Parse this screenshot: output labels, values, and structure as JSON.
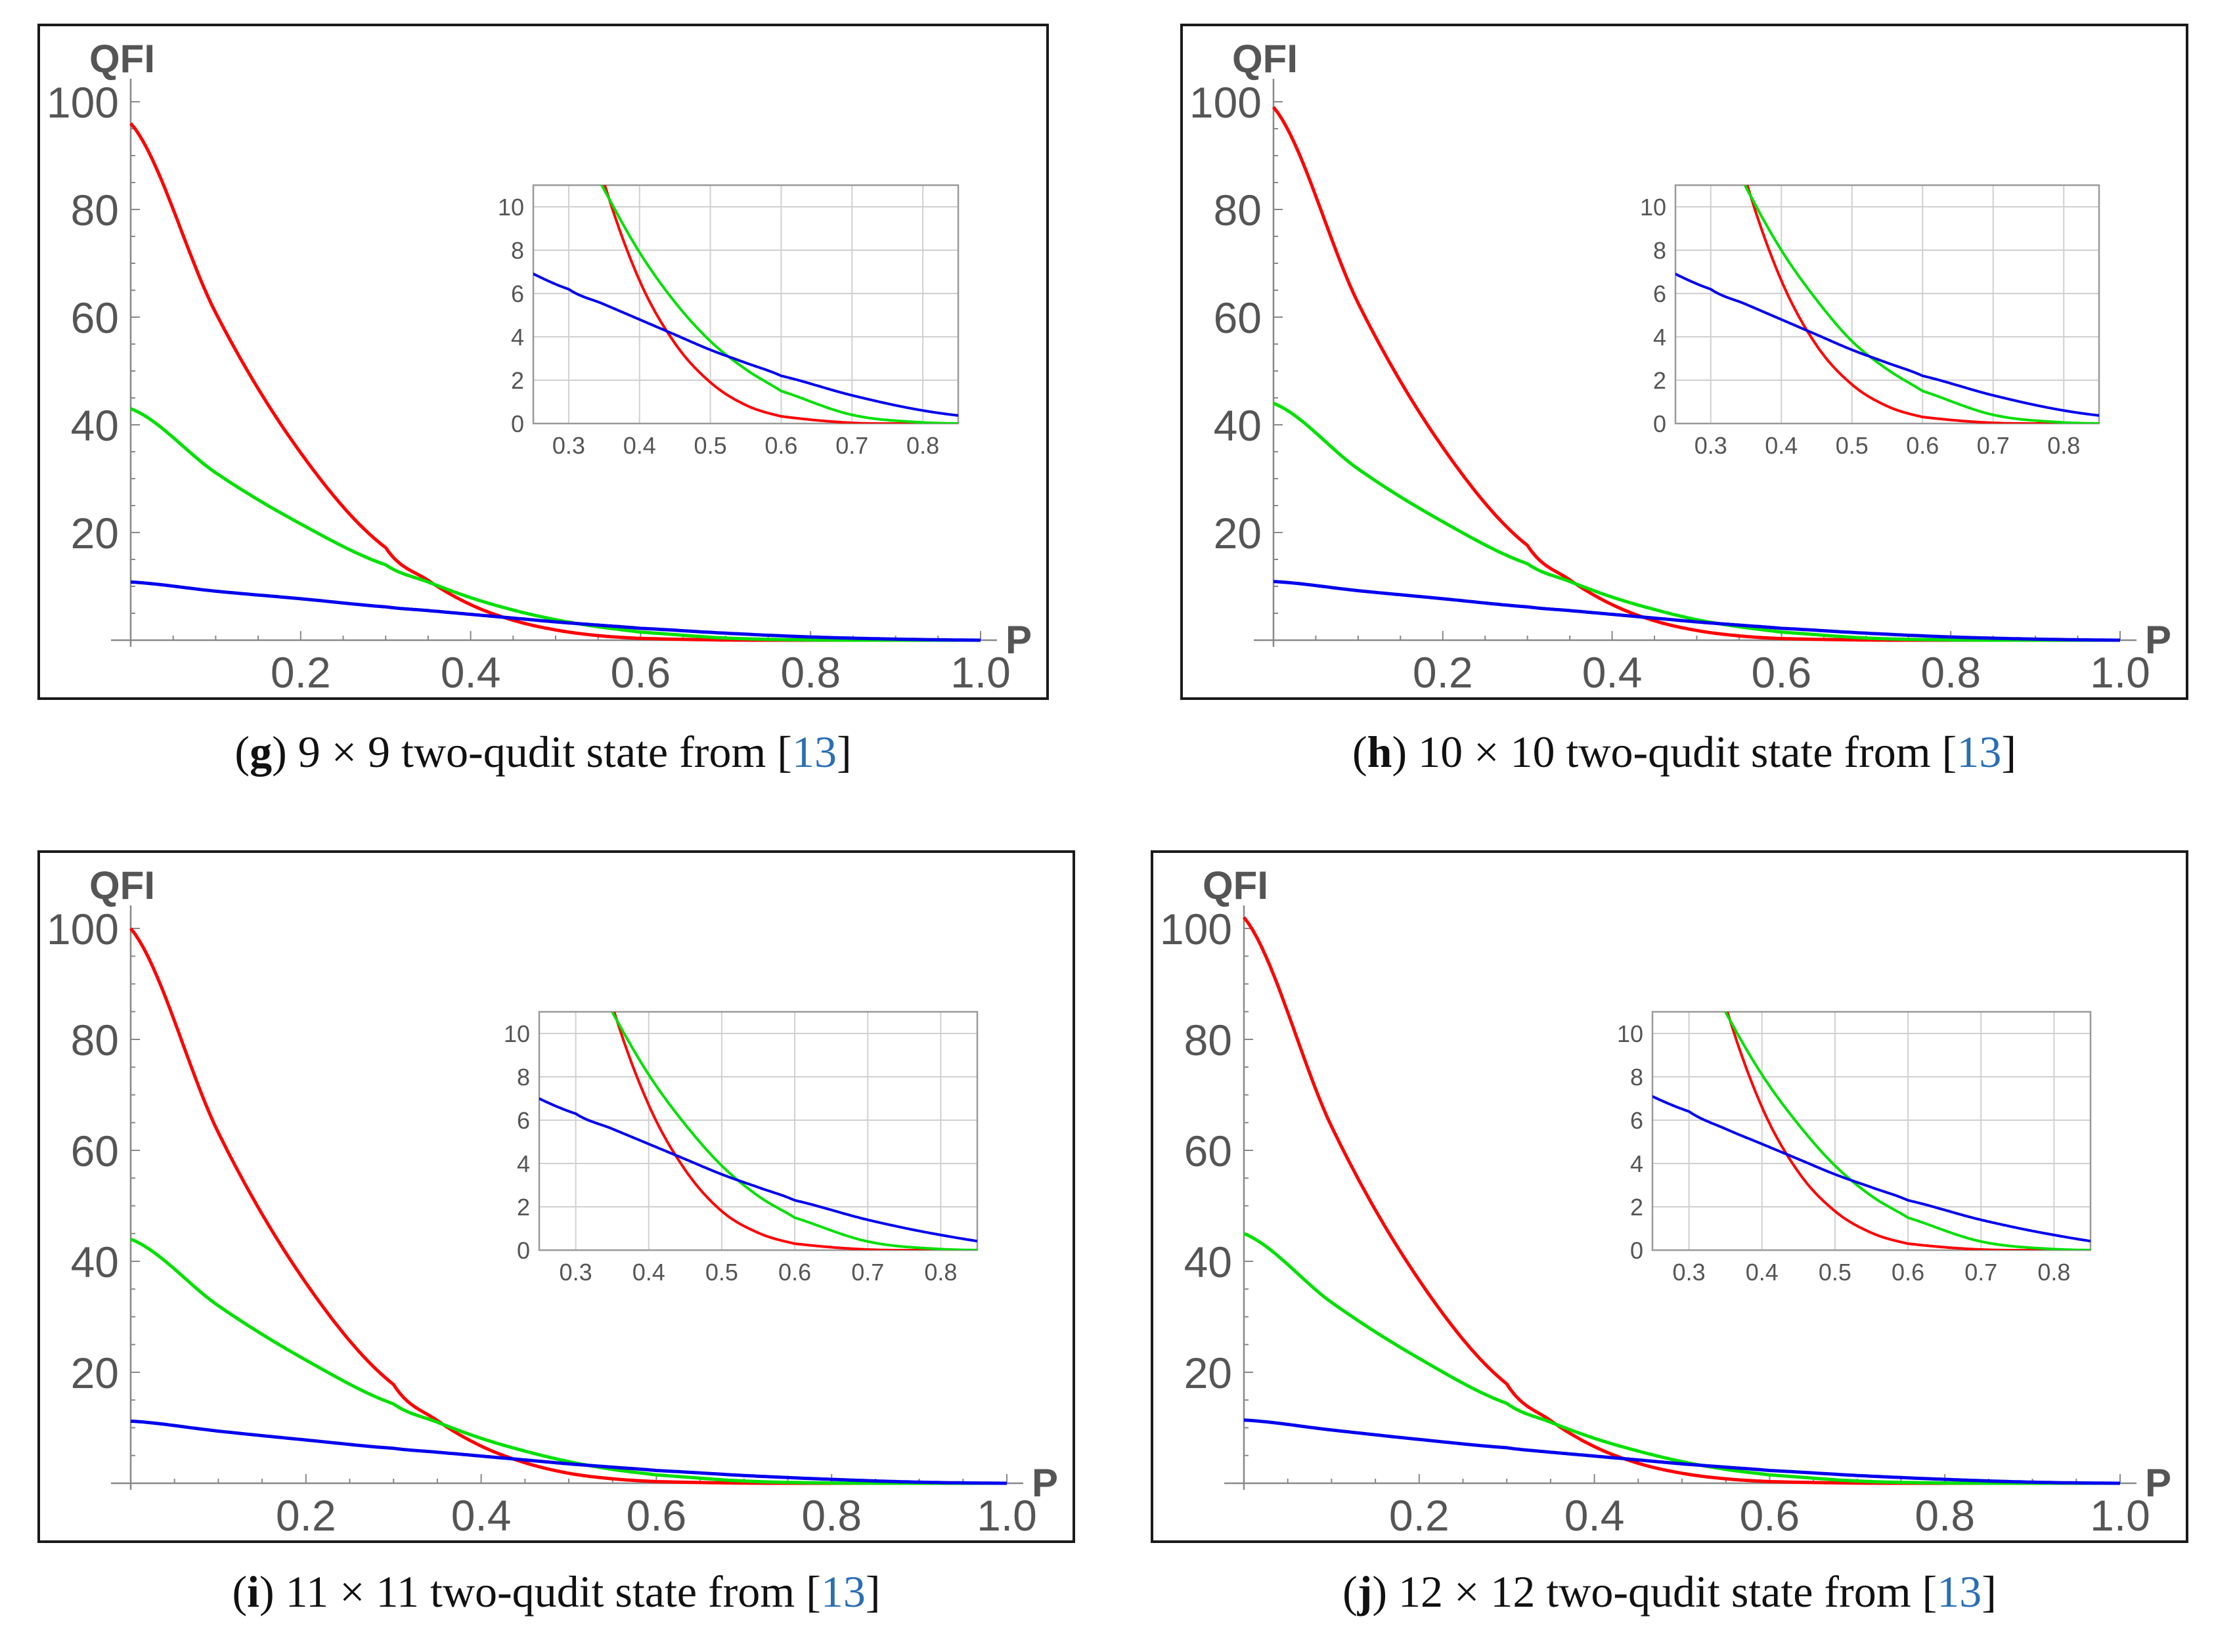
{
  "panels": [
    {
      "caption": {
        "open": "(",
        "tag": "g",
        "text": ") 9 × 9 two-qudit state from [",
        "ref": "13",
        "close": "]"
      },
      "chart_data": {
        "type": "line",
        "xlabel": "P",
        "ylabel": "QFI",
        "xlim": [
          0,
          1.0
        ],
        "ylim": [
          0,
          100
        ],
        "xticks": [
          "0.2",
          "0.4",
          "0.6",
          "0.8",
          "1.0"
        ],
        "yticks": [
          "20",
          "40",
          "60",
          "80",
          "100"
        ],
        "x": [
          0,
          0.1,
          0.2,
          0.3,
          0.35,
          0.4,
          0.45,
          0.5,
          0.55,
          0.6,
          0.7,
          0.8,
          0.9,
          1.0
        ],
        "series": [
          {
            "color": "#ff0000",
            "values": [
              96,
              60.8,
              34.8,
              17.2,
              11.1,
              6.6,
              3.7,
              1.9,
              0.85,
              0.33,
              0.03,
              0,
              0,
              0
            ]
          },
          {
            "color": "#00e000",
            "values": [
              43,
              31.1,
              21.6,
              14.0,
              10.8,
              7.9,
              5.6,
              3.8,
              2.5,
              1.5,
              0.4,
              0.05,
              0,
              0
            ]
          },
          {
            "color": "#0000ee",
            "values": [
              10.8,
              9.1,
              7.7,
              6.2,
              5.5,
              4.8,
              4.1,
              3.4,
              2.8,
              2.2,
              1.3,
              0.6,
              0.2,
              0
            ]
          }
        ],
        "inset": {
          "xlim": [
            0.25,
            0.85
          ],
          "ylim": [
            0,
            11
          ],
          "xticks": [
            "0.3",
            "0.4",
            "0.5",
            "0.6",
            "0.7",
            "0.8"
          ],
          "yticks": [
            "0",
            "2",
            "4",
            "6",
            "8",
            "10"
          ]
        }
      }
    },
    {
      "caption": {
        "open": "(",
        "tag": "h",
        "text": ") 10 × 10 two-qudit state from [",
        "ref": "13",
        "close": "]"
      },
      "chart_data": {
        "type": "line",
        "xlabel": "P",
        "ylabel": "QFI",
        "xlim": [
          0,
          1.0
        ],
        "ylim": [
          0,
          100
        ],
        "xticks": [
          "0.2",
          "0.4",
          "0.6",
          "0.8",
          "1.0"
        ],
        "yticks": [
          "20",
          "40",
          "60",
          "80",
          "100"
        ],
        "x": [
          0,
          0.1,
          0.2,
          0.3,
          0.35,
          0.4,
          0.45,
          0.5,
          0.55,
          0.6,
          0.7,
          0.8,
          0.9,
          1.0
        ],
        "series": [
          {
            "color": "#ff0000",
            "values": [
              99,
              62.6,
              35.8,
              17.6,
              11.2,
              6.6,
              3.6,
              1.8,
              0.8,
              0.3,
              0.03,
              0,
              0,
              0
            ]
          },
          {
            "color": "#00e000",
            "values": [
              44,
              31.8,
              22.0,
              14.2,
              10.9,
              8.0,
              5.7,
              3.8,
              2.5,
              1.5,
              0.4,
              0.05,
              0,
              0
            ]
          },
          {
            "color": "#0000ee",
            "values": [
              10.9,
              9.2,
              7.7,
              6.2,
              5.5,
              4.8,
              4.1,
              3.4,
              2.8,
              2.2,
              1.3,
              0.6,
              0.2,
              0
            ]
          }
        ],
        "inset": {
          "xlim": [
            0.25,
            0.85
          ],
          "ylim": [
            0,
            11
          ],
          "xticks": [
            "0.3",
            "0.4",
            "0.5",
            "0.6",
            "0.7",
            "0.8"
          ],
          "yticks": [
            "0",
            "2",
            "4",
            "6",
            "8",
            "10"
          ]
        }
      }
    },
    {
      "caption": {
        "open": "(",
        "tag": "i",
        "text": ") 11 × 11 two-qudit state from [",
        "ref": "13",
        "close": "]"
      },
      "chart_data": {
        "type": "line",
        "xlabel": "P",
        "ylabel": "QFI",
        "xlim": [
          0,
          1.0
        ],
        "ylim": [
          0,
          100
        ],
        "xticks": [
          "0.2",
          "0.4",
          "0.6",
          "0.8",
          "1.0"
        ],
        "yticks": [
          "20",
          "40",
          "60",
          "80",
          "100"
        ],
        "x": [
          0,
          0.1,
          0.2,
          0.3,
          0.35,
          0.4,
          0.45,
          0.5,
          0.55,
          0.6,
          0.7,
          0.8,
          0.9,
          1.0
        ],
        "series": [
          {
            "color": "#ff0000",
            "values": [
              100,
              63.2,
              36.1,
              17.8,
              11.3,
              6.7,
              3.7,
              1.8,
              0.8,
              0.3,
              0.03,
              0,
              0,
              0
            ]
          },
          {
            "color": "#00e000",
            "values": [
              44,
              32.0,
              22.2,
              14.3,
              11.0,
              8.1,
              5.8,
              3.9,
              2.5,
              1.5,
              0.4,
              0.05,
              0,
              0
            ]
          },
          {
            "color": "#0000ee",
            "values": [
              11.2,
              9.4,
              7.8,
              6.3,
              5.6,
              4.9,
              4.2,
              3.5,
              2.9,
              2.3,
              1.4,
              0.7,
              0.2,
              0
            ]
          }
        ],
        "inset": {
          "xlim": [
            0.25,
            0.85
          ],
          "ylim": [
            0,
            11
          ],
          "xticks": [
            "0.3",
            "0.4",
            "0.5",
            "0.6",
            "0.7",
            "0.8"
          ],
          "yticks": [
            "0",
            "2",
            "4",
            "6",
            "8",
            "10"
          ]
        }
      }
    },
    {
      "caption": {
        "open": "(",
        "tag": "j",
        "text": ") 12 × 12 two-qudit state from [",
        "ref": "13",
        "close": "]"
      },
      "chart_data": {
        "type": "line",
        "xlabel": "P",
        "ylabel": "QFI",
        "xlim": [
          0,
          1.0
        ],
        "ylim": [
          0,
          100
        ],
        "xticks": [
          "0.2",
          "0.4",
          "0.6",
          "0.8",
          "1.0"
        ],
        "yticks": [
          "20",
          "40",
          "60",
          "80",
          "100"
        ],
        "x": [
          0,
          0.1,
          0.2,
          0.3,
          0.35,
          0.4,
          0.45,
          0.5,
          0.55,
          0.6,
          0.7,
          0.8,
          0.9,
          1.0
        ],
        "series": [
          {
            "color": "#ff0000",
            "values": [
              102,
              64.3,
              36.6,
              17.9,
              11.3,
              6.6,
              3.6,
              1.8,
              0.8,
              0.3,
              0.03,
              0,
              0,
              0
            ]
          },
          {
            "color": "#00e000",
            "values": [
              45,
              32.6,
              22.5,
              14.4,
              11.0,
              8.1,
              5.8,
              3.9,
              2.5,
              1.5,
              0.4,
              0.05,
              0,
              0
            ]
          },
          {
            "color": "#0000ee",
            "values": [
              11.4,
              9.6,
              7.9,
              6.4,
              5.6,
              4.9,
              4.2,
              3.5,
              2.9,
              2.3,
              1.4,
              0.7,
              0.2,
              0
            ]
          }
        ],
        "inset": {
          "xlim": [
            0.25,
            0.85
          ],
          "ylim": [
            0,
            11
          ],
          "xticks": [
            "0.3",
            "0.4",
            "0.5",
            "0.6",
            "0.7",
            "0.8"
          ],
          "yticks": [
            "0",
            "2",
            "4",
            "6",
            "8",
            "10"
          ]
        }
      }
    }
  ]
}
